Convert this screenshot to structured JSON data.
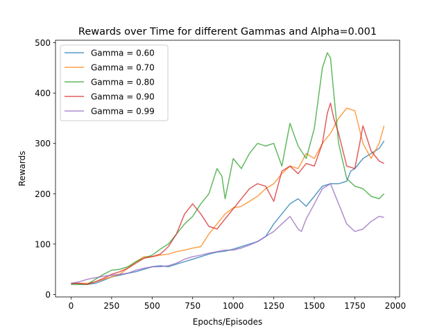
{
  "chart_data": {
    "type": "line",
    "title": "Rewards over Time for different Gammas and Alpha=0.001",
    "xlabel": "Epochs/Episodes",
    "ylabel": "Rewards",
    "xlim": [
      -96,
      2026
    ],
    "ylim": [
      -5,
      505
    ],
    "xticks": [
      0,
      250,
      500,
      750,
      1000,
      1250,
      1500,
      1750,
      2000
    ],
    "yticks": [
      0,
      100,
      200,
      300,
      400,
      500
    ],
    "xtick_labels": [
      "0",
      "250",
      "500",
      "750",
      "1000",
      "1250",
      "1500",
      "1750",
      "2000"
    ],
    "ytick_labels": [
      "0",
      "100",
      "200",
      "300",
      "400",
      "500"
    ],
    "grid": false,
    "legend_position": "upper left",
    "series": [
      {
        "name": "Gamma = 0.60",
        "color": "#1f77b4",
        "x": [
          0,
          50,
          100,
          150,
          200,
          250,
          300,
          350,
          400,
          450,
          500,
          550,
          600,
          650,
          700,
          750,
          800,
          850,
          900,
          950,
          1000,
          1050,
          1100,
          1150,
          1200,
          1250,
          1300,
          1350,
          1400,
          1450,
          1500,
          1550,
          1600,
          1650,
          1700,
          1725,
          1750,
          1800,
          1850,
          1900,
          1930
        ],
        "values": [
          22,
          20,
          20,
          22,
          28,
          35,
          38,
          42,
          45,
          50,
          55,
          57,
          55,
          60,
          65,
          70,
          75,
          80,
          84,
          86,
          90,
          95,
          100,
          105,
          115,
          140,
          160,
          180,
          190,
          175,
          195,
          215,
          220,
          220,
          225,
          245,
          250,
          270,
          280,
          290,
          305
        ]
      },
      {
        "name": "Gamma = 0.70",
        "color": "#ff7f0e",
        "x": [
          0,
          50,
          100,
          150,
          200,
          250,
          300,
          350,
          400,
          450,
          500,
          550,
          600,
          650,
          700,
          750,
          800,
          850,
          900,
          950,
          1000,
          1050,
          1100,
          1150,
          1200,
          1250,
          1300,
          1350,
          1400,
          1450,
          1500,
          1550,
          1600,
          1650,
          1700,
          1750,
          1800,
          1850,
          1900,
          1930
        ],
        "values": [
          20,
          22,
          22,
          25,
          30,
          35,
          40,
          52,
          65,
          75,
          75,
          78,
          80,
          85,
          88,
          92,
          95,
          120,
          140,
          160,
          172,
          175,
          185,
          195,
          210,
          220,
          240,
          255,
          250,
          280,
          270,
          300,
          320,
          350,
          370,
          365,
          300,
          270,
          300,
          335
        ]
      },
      {
        "name": "Gamma = 0.80",
        "color": "#2ca02c",
        "x": [
          0,
          50,
          100,
          150,
          200,
          250,
          300,
          350,
          400,
          450,
          500,
          550,
          600,
          650,
          700,
          750,
          800,
          850,
          880,
          900,
          930,
          950,
          1000,
          1050,
          1100,
          1150,
          1200,
          1250,
          1300,
          1350,
          1400,
          1450,
          1500,
          1550,
          1580,
          1600,
          1620,
          1650,
          1700,
          1750,
          1800,
          1850,
          1900,
          1930
        ],
        "values": [
          20,
          20,
          20,
          30,
          40,
          48,
          50,
          55,
          65,
          72,
          78,
          90,
          100,
          120,
          140,
          155,
          180,
          200,
          230,
          250,
          235,
          190,
          270,
          250,
          280,
          300,
          295,
          300,
          255,
          340,
          295,
          270,
          330,
          450,
          480,
          470,
          400,
          300,
          230,
          215,
          210,
          195,
          190,
          200
        ]
      },
      {
        "name": "Gamma = 0.90",
        "color": "#d62728",
        "x": [
          0,
          50,
          100,
          150,
          200,
          250,
          300,
          350,
          400,
          450,
          500,
          550,
          600,
          650,
          700,
          750,
          800,
          850,
          900,
          950,
          1000,
          1050,
          1100,
          1150,
          1200,
          1250,
          1300,
          1350,
          1400,
          1450,
          1500,
          1550,
          1580,
          1600,
          1620,
          1650,
          1700,
          1750,
          1780,
          1800,
          1850,
          1900,
          1930
        ],
        "values": [
          22,
          22,
          20,
          25,
          32,
          40,
          45,
          52,
          62,
          72,
          75,
          80,
          95,
          120,
          160,
          180,
          160,
          135,
          130,
          150,
          170,
          190,
          210,
          220,
          215,
          185,
          245,
          255,
          240,
          260,
          255,
          300,
          360,
          380,
          350,
          320,
          255,
          250,
          300,
          335,
          285,
          265,
          260
        ]
      },
      {
        "name": "Gamma = 0.99",
        "color": "#9467bd",
        "x": [
          0,
          50,
          100,
          150,
          200,
          250,
          300,
          350,
          400,
          450,
          500,
          550,
          600,
          650,
          700,
          750,
          800,
          850,
          900,
          950,
          1000,
          1050,
          1100,
          1150,
          1200,
          1250,
          1300,
          1350,
          1400,
          1420,
          1450,
          1500,
          1550,
          1600,
          1650,
          1700,
          1750,
          1800,
          1850,
          1900,
          1930
        ],
        "values": [
          22,
          25,
          30,
          33,
          36,
          38,
          40,
          42,
          48,
          52,
          55,
          55,
          57,
          62,
          70,
          75,
          78,
          82,
          85,
          88,
          88,
          92,
          98,
          105,
          115,
          125,
          140,
          155,
          130,
          125,
          150,
          180,
          210,
          220,
          180,
          140,
          125,
          130,
          145,
          155,
          153
        ]
      }
    ]
  }
}
